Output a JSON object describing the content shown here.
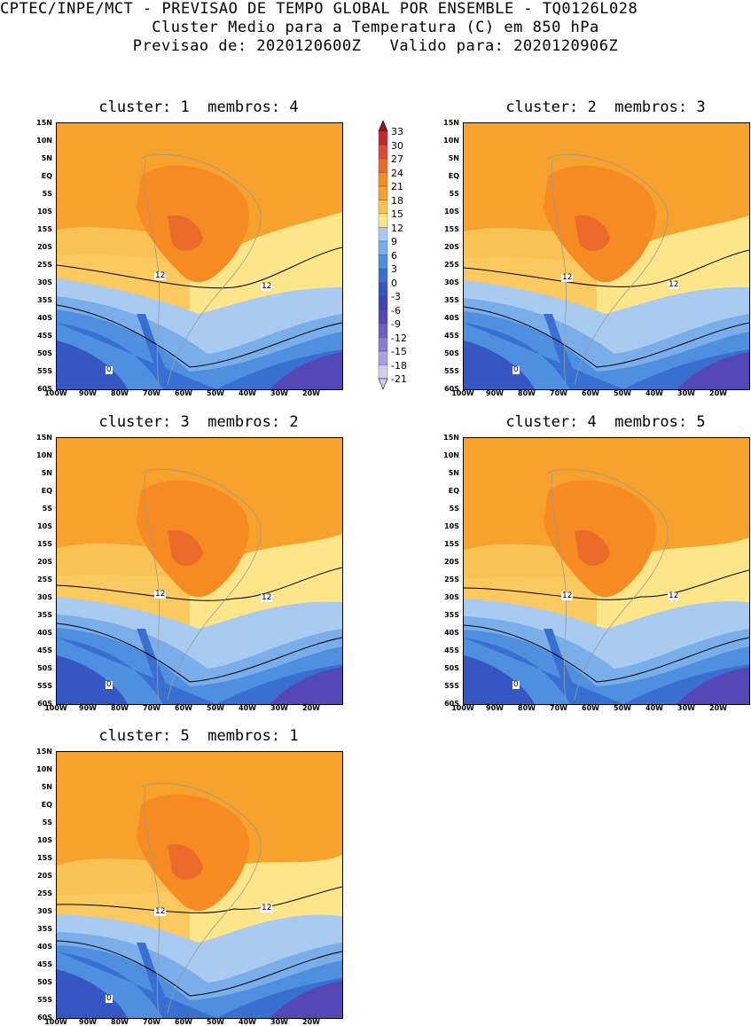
{
  "header": {
    "line1": "CPTEC/INPE/MCT - PREVISAO DE TEMPO GLOBAL POR ENSEMBLE - TQ0126L028",
    "line2": "Cluster Medio para a Temperatura (C) em 850 hPa",
    "line3": "Previsao de: 2020120600Z   Valido para: 2020120906Z"
  },
  "panels": [
    {
      "title": "cluster: 1  membros: 4"
    },
    {
      "title": "cluster: 2  membros: 3"
    },
    {
      "title": "cluster: 3  membros: 2"
    },
    {
      "title": "cluster: 4  membros: 5"
    },
    {
      "title": "cluster: 5  membros: 1"
    }
  ],
  "axes": {
    "lat_labels": [
      "15N",
      "10N",
      "5N",
      "EQ",
      "5S",
      "10S",
      "15S",
      "20S",
      "25S",
      "30S",
      "35S",
      "40S",
      "45S",
      "50S",
      "55S",
      "60S"
    ],
    "lon_labels": [
      "100W",
      "90W",
      "80W",
      "70W",
      "60W",
      "50W",
      "40W",
      "30W",
      "20W"
    ]
  },
  "contour_labels": {
    "twelve": "12",
    "zero": "0"
  },
  "colorbar": {
    "levels": [
      "33",
      "30",
      "27",
      "24",
      "21",
      "18",
      "15",
      "12",
      "9",
      "6",
      "3",
      "0",
      "-3",
      "-6",
      "-9",
      "-12",
      "-15",
      "-18",
      "-21"
    ],
    "colors": [
      "#a50f15",
      "#c4282b",
      "#de4b33",
      "#ec6a2a",
      "#f58b22",
      "#f6a22c",
      "#f9c55a",
      "#fde68a",
      "#a9cbf2",
      "#7aaeea",
      "#4f8fe0",
      "#3a6fd2",
      "#3556c3",
      "#3d44b4",
      "#5647b6",
      "#6f5dc3",
      "#8c7ad0",
      "#ad9ee0",
      "#d4ccf0"
    ]
  }
}
